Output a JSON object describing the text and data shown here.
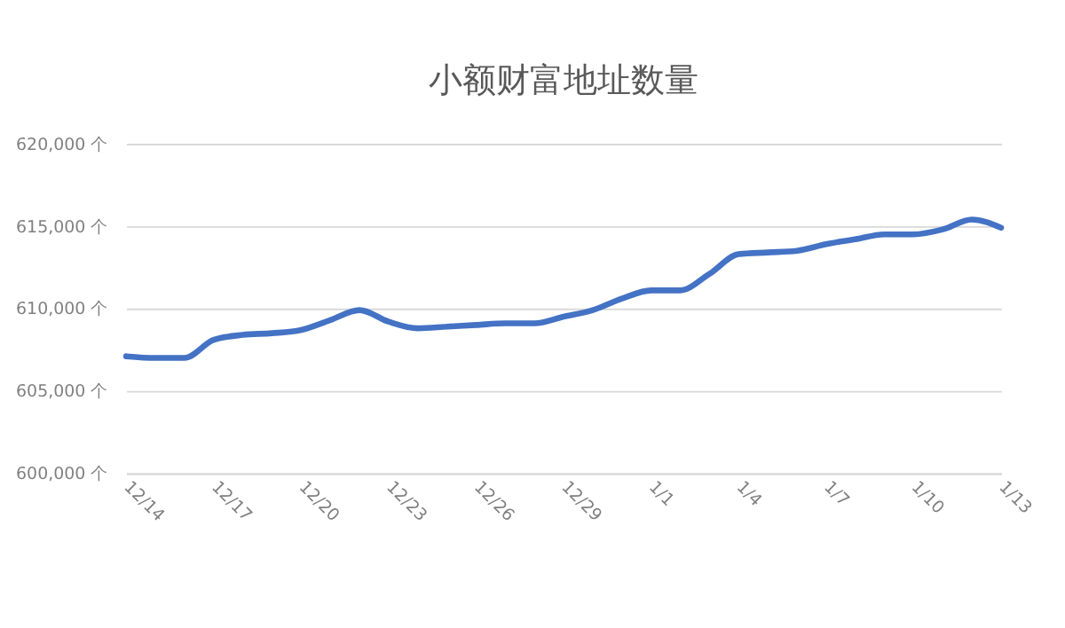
{
  "chart_data": {
    "type": "line",
    "title": "小额财富地址数量",
    "categories": [
      "12/14",
      null,
      null,
      "12/17",
      null,
      null,
      "12/20",
      null,
      null,
      "12/23",
      null,
      null,
      "12/26",
      null,
      null,
      "12/29",
      null,
      null,
      "1/1",
      null,
      null,
      "1/4",
      null,
      null,
      "1/7",
      null,
      null,
      "1/10",
      null,
      null,
      "1/13"
    ],
    "series": [
      {
        "color": "#4472c4",
        "values": [
          607100,
          607000,
          607000,
          608100,
          608400,
          608500,
          608700,
          609300,
          609900,
          609200,
          608800,
          608900,
          609000,
          609100,
          609100,
          609500,
          609900,
          610600,
          611100,
          611100,
          612100,
          613300,
          613400,
          613500,
          613900,
          614200,
          614500,
          614500,
          614800,
          615400,
          614900
        ]
      }
    ],
    "ylim": [
      600000,
      620000
    ],
    "yticks": [
      {
        "value": 600000,
        "label": "600,000 个"
      },
      {
        "value": 605000,
        "label": "605,000 个"
      },
      {
        "value": 610000,
        "label": "610,000 个"
      },
      {
        "value": 615000,
        "label": "615,000 个"
      },
      {
        "value": 620000,
        "label": "620,000 个"
      }
    ],
    "grid": "y",
    "marker": "none",
    "line_style": "solid"
  }
}
